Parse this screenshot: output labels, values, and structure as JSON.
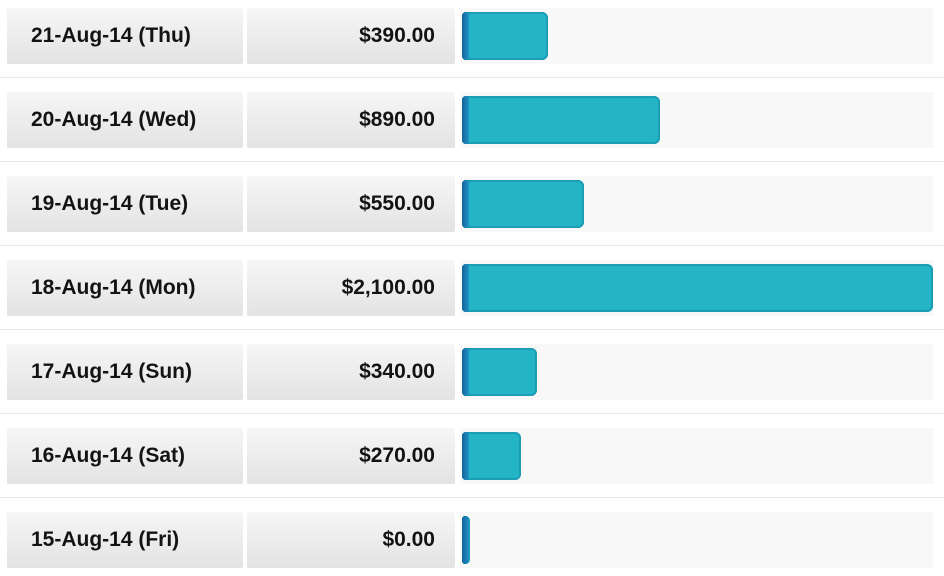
{
  "chart_data": {
    "type": "bar",
    "orientation": "horizontal",
    "title": "",
    "xlabel": "",
    "ylabel": "",
    "categories": [
      "21-Aug-14 (Thu)",
      "20-Aug-14 (Wed)",
      "19-Aug-14 (Tue)",
      "18-Aug-14 (Mon)",
      "17-Aug-14 (Sun)",
      "16-Aug-14 (Sat)",
      "15-Aug-14 (Fri)"
    ],
    "values": [
      390,
      890,
      550,
      2100,
      340,
      270,
      0
    ],
    "value_labels": [
      "$390.00",
      "$890.00",
      "$550.00",
      "$2,100.00",
      "$340.00",
      "$270.00",
      "$0.00"
    ],
    "xlim": [
      0,
      2100
    ],
    "grid": false,
    "legend": false,
    "bar_color": "#24b4c8",
    "bar_border_color": "#1b9db3",
    "baseline_color": "#15619e"
  },
  "rows": [
    {
      "date": "21-Aug-14 (Thu)",
      "amount": "$390.00",
      "value": 390
    },
    {
      "date": "20-Aug-14 (Wed)",
      "amount": "$890.00",
      "value": 890
    },
    {
      "date": "19-Aug-14 (Tue)",
      "amount": "$550.00",
      "value": 550
    },
    {
      "date": "18-Aug-14 (Mon)",
      "amount": "$2,100.00",
      "value": 2100
    },
    {
      "date": "17-Aug-14 (Sun)",
      "amount": "$340.00",
      "value": 340
    },
    {
      "date": "16-Aug-14 (Sat)",
      "amount": "$270.00",
      "value": 270
    },
    {
      "date": "15-Aug-14 (Fri)",
      "amount": "$0.00",
      "value": 0
    }
  ],
  "colors": {
    "cell_gradient_top": "#f6f6f6",
    "cell_gradient_bottom": "#e3e3e3",
    "track_background": "#f8f8f8",
    "separator": "#e9e9e9",
    "text": "#131313"
  }
}
